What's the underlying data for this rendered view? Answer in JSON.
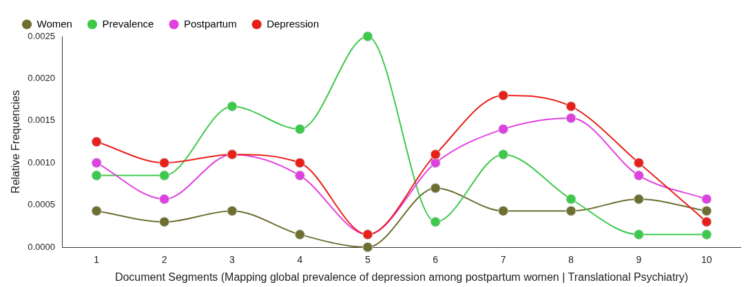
{
  "chart_data": {
    "type": "line",
    "xlabel": "Document Segments (Mapping global prevalence of depression among postpartum women | Translational Psychiatry)",
    "ylabel": "Relative Frequencies",
    "categories": [
      "1",
      "2",
      "3",
      "4",
      "5",
      "6",
      "7",
      "8",
      "9",
      "10"
    ],
    "series": [
      {
        "name": "Women",
        "color": "#6e6e30",
        "values": [
          0.00043,
          0.0003,
          0.00043,
          0.00015,
          0.0,
          0.0007,
          0.00043,
          0.00043,
          0.00057,
          0.00043
        ]
      },
      {
        "name": "Prevalence",
        "color": "#3dc94a",
        "values": [
          0.00085,
          0.00085,
          0.00167,
          0.0014,
          0.0025,
          0.0003,
          0.0011,
          0.00057,
          0.00015,
          0.00015
        ]
      },
      {
        "name": "Postpartum",
        "color": "#e040e0",
        "values": [
          0.001,
          0.00057,
          0.0011,
          0.00085,
          0.00015,
          0.001,
          0.0014,
          0.00153,
          0.00085,
          0.00057
        ]
      },
      {
        "name": "Depression",
        "color": "#e8201a",
        "values": [
          0.00125,
          0.001,
          0.0011,
          0.001,
          0.00015,
          0.0011,
          0.0018,
          0.00167,
          0.001,
          0.0003
        ]
      }
    ],
    "ylim": [
      0,
      0.0025
    ],
    "yticks": [
      {
        "value": 0,
        "label": "0.0000"
      },
      {
        "value": 0.0005,
        "label": "0.0005"
      },
      {
        "value": 0.001,
        "label": "0.0010"
      },
      {
        "value": 0.0015,
        "label": "0.0015"
      },
      {
        "value": 0.002,
        "label": "0.0020"
      },
      {
        "value": 0.0025,
        "label": "0.0025"
      }
    ],
    "grid": false,
    "legend": "top left",
    "marker": "circle",
    "line_style": "solid"
  }
}
